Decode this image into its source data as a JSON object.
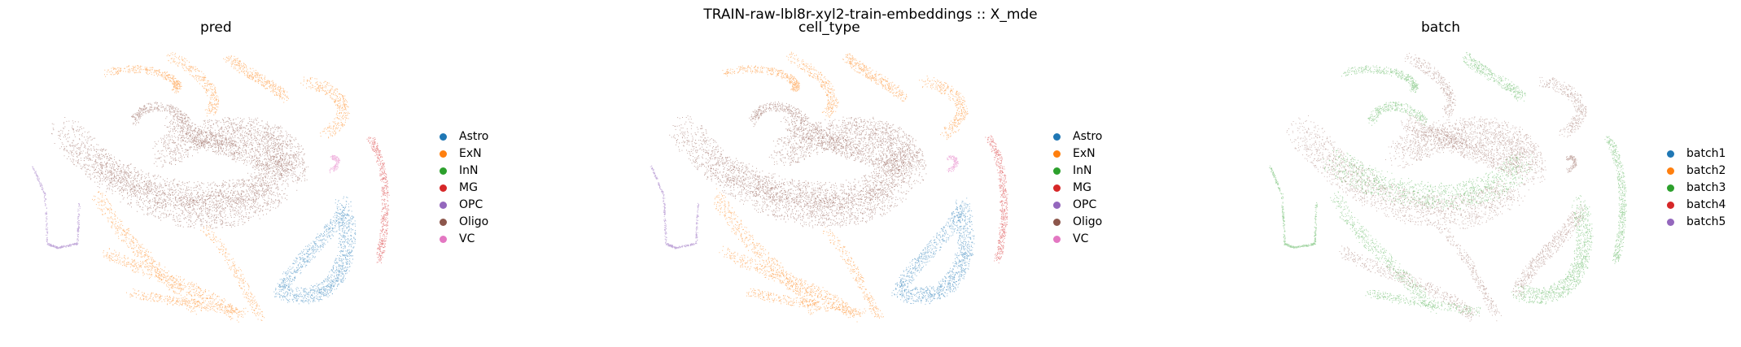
{
  "figure": {
    "suptitle": "TRAIN-raw-lbl8r-xyl2-train-embeddings :: X_mde"
  },
  "chart_data": [
    {
      "type": "scatter",
      "title": "pred",
      "legend_placement": "right",
      "grid": false,
      "axes_visible": false,
      "legend": [
        {
          "label": "Astro",
          "color": "#1f77b4"
        },
        {
          "label": "ExN",
          "color": "#ff7f0e"
        },
        {
          "label": "InN",
          "color": "#2ca02c"
        },
        {
          "label": "MG",
          "color": "#d62728"
        },
        {
          "label": "OPC",
          "color": "#9467bd"
        },
        {
          "label": "Oligo",
          "color": "#8c564b"
        },
        {
          "label": "VC",
          "color": "#e377c2"
        }
      ]
    },
    {
      "type": "scatter",
      "title": "cell_type",
      "legend_placement": "right",
      "grid": false,
      "axes_visible": false,
      "legend": [
        {
          "label": "Astro",
          "color": "#1f77b4"
        },
        {
          "label": "ExN",
          "color": "#ff7f0e"
        },
        {
          "label": "InN",
          "color": "#2ca02c"
        },
        {
          "label": "MG",
          "color": "#d62728"
        },
        {
          "label": "OPC",
          "color": "#9467bd"
        },
        {
          "label": "Oligo",
          "color": "#8c564b"
        },
        {
          "label": "VC",
          "color": "#e377c2"
        }
      ]
    },
    {
      "type": "scatter",
      "title": "batch",
      "legend_placement": "right",
      "grid": false,
      "axes_visible": false,
      "legend": [
        {
          "label": "batch1",
          "color": "#1f77b4"
        },
        {
          "label": "batch2",
          "color": "#ff7f0e"
        },
        {
          "label": "batch3",
          "color": "#2ca02c"
        },
        {
          "label": "batch4",
          "color": "#d62728"
        },
        {
          "label": "batch5",
          "color": "#9467bd"
        }
      ]
    }
  ]
}
